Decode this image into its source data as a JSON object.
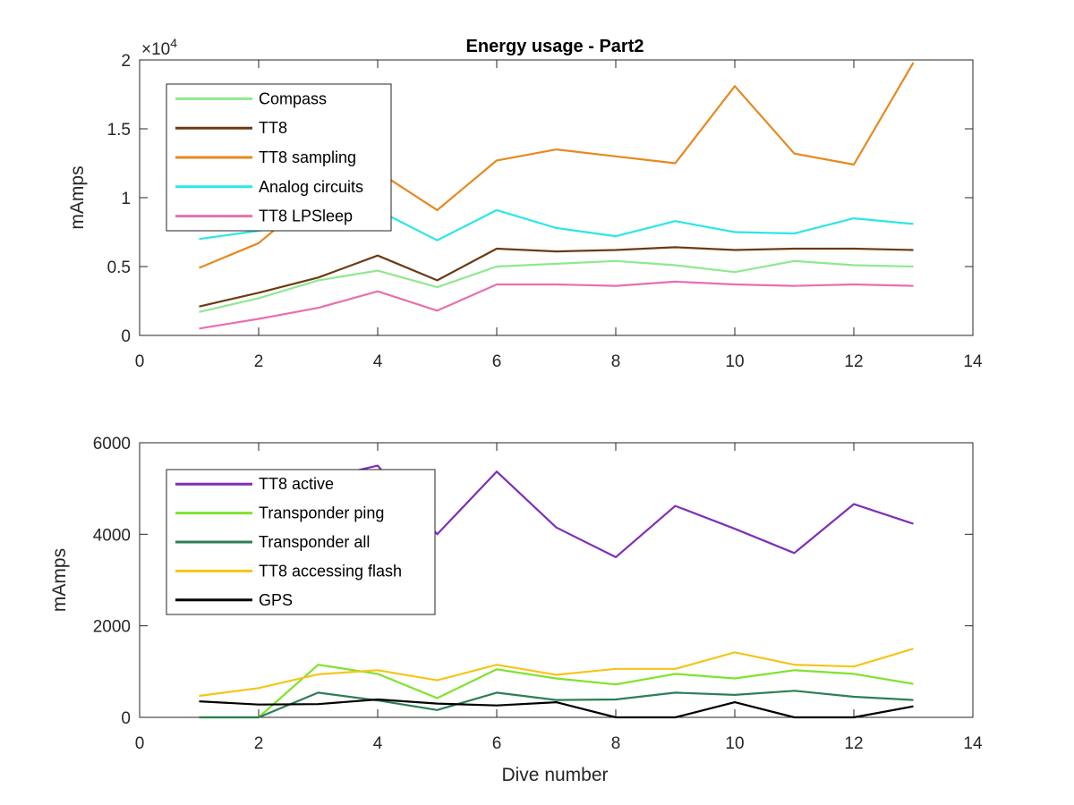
{
  "title": "Energy usage - Part2",
  "xlabel": "Dive number",
  "chart_data": [
    {
      "type": "line",
      "title": "Energy usage - Part2",
      "ylabel": "mAmps",
      "xlabel": "",
      "xlim": [
        0,
        14
      ],
      "ylim": [
        0,
        20000
      ],
      "xticks": [
        "0",
        "2",
        "4",
        "6",
        "8",
        "10",
        "12",
        "14"
      ],
      "yticks": [
        "0",
        "0.5",
        "1",
        "1.5",
        "2"
      ],
      "y_exponent_label": "×10",
      "y_exponent_power": "4",
      "grid": false,
      "legend_position": "top-left",
      "x": [
        1,
        2,
        3,
        4,
        5,
        6,
        7,
        8,
        9,
        10,
        11,
        12,
        13
      ],
      "series": [
        {
          "name": "Compass",
          "color": "#8fe88f",
          "values": [
            1700,
            2700,
            4000,
            4700,
            3500,
            5000,
            5200,
            5400,
            5100,
            4600,
            5400,
            5100,
            5000
          ]
        },
        {
          "name": "TT8",
          "color": "#6b3b14",
          "values": [
            2100,
            3100,
            4200,
            5800,
            4000,
            6300,
            6100,
            6200,
            6400,
            6200,
            6300,
            6300,
            6200
          ]
        },
        {
          "name": "TT8 sampling",
          "color": "#e6891f",
          "values": [
            4900,
            6700,
            10300,
            11900,
            9100,
            12700,
            13500,
            13000,
            12500,
            18100,
            13200,
            12400,
            19800
          ]
        },
        {
          "name": "Analog circuits",
          "color": "#2de6e6",
          "values": [
            7000,
            7600,
            8300,
            9100,
            6900,
            9100,
            7800,
            7200,
            8300,
            7500,
            7400,
            8500,
            8100
          ]
        },
        {
          "name": "TT8 LPSleep",
          "color": "#e86fb0",
          "values": [
            500,
            1200,
            2000,
            3200,
            1800,
            3700,
            3700,
            3600,
            3900,
            3700,
            3600,
            3700,
            3600
          ]
        }
      ]
    },
    {
      "type": "line",
      "title": "",
      "ylabel": "mAmps",
      "xlabel": "Dive number",
      "xlim": [
        0,
        14
      ],
      "ylim": [
        0,
        6000
      ],
      "xticks": [
        "0",
        "2",
        "4",
        "6",
        "8",
        "10",
        "12",
        "14"
      ],
      "yticks": [
        "0",
        "2000",
        "4000",
        "6000"
      ],
      "grid": false,
      "legend_position": "top-left",
      "x": [
        1,
        2,
        3,
        4,
        5,
        6,
        7,
        8,
        9,
        10,
        11,
        12,
        13
      ],
      "series": [
        {
          "name": "TT8 active",
          "color": "#7e2fb8",
          "values": [
            4600,
            4900,
            5200,
            5500,
            4000,
            5370,
            4150,
            3500,
            4620,
            4120,
            3590,
            4660,
            4230
          ]
        },
        {
          "name": "Transponder ping",
          "color": "#7fe32b",
          "values": [
            0,
            0,
            1150,
            950,
            420,
            1050,
            850,
            720,
            950,
            850,
            1030,
            950,
            730
          ]
        },
        {
          "name": "Transponder all",
          "color": "#2f7d57",
          "values": [
            0,
            0,
            540,
            370,
            160,
            540,
            380,
            390,
            540,
            490,
            580,
            450,
            380
          ]
        },
        {
          "name": "TT8 accessing flash",
          "color": "#f5c518",
          "values": [
            470,
            640,
            940,
            1030,
            810,
            1150,
            930,
            1060,
            1060,
            1420,
            1150,
            1110,
            1500
          ]
        },
        {
          "name": "GPS",
          "color": "#000000",
          "values": [
            350,
            280,
            290,
            390,
            300,
            260,
            330,
            0,
            0,
            330,
            0,
            0,
            240
          ]
        }
      ]
    }
  ]
}
